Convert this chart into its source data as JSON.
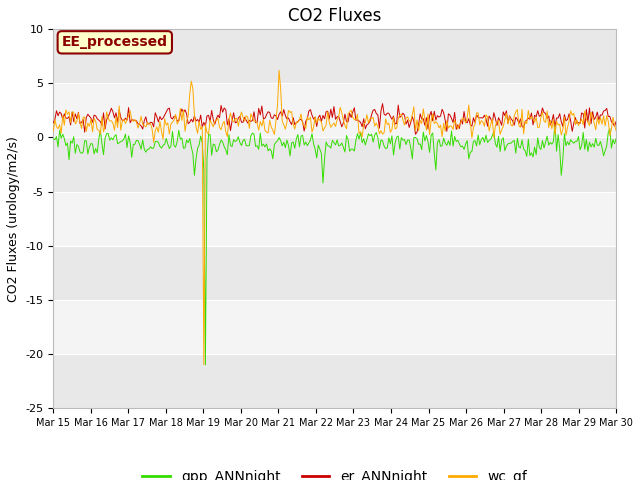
{
  "title": "CO2 Fluxes",
  "ylabel": "CO2 Fluxes (urology/m2/s)",
  "x_tick_labels": [
    "Mar 15",
    "Mar 16",
    "Mar 17",
    "Mar 18",
    "Mar 19",
    "Mar 20",
    "Mar 21",
    "Mar 22",
    "Mar 23",
    "Mar 24",
    "Mar 25",
    "Mar 26",
    "Mar 27",
    "Mar 28",
    "Mar 29",
    "Mar 30"
  ],
  "annotation_text": "EE_processed",
  "line_colors": {
    "gpp": "#33dd00",
    "er": "#cc0000",
    "wc": "#ffaa00"
  },
  "line_labels": [
    "gpp_ANNnight",
    "er_ANNnight",
    "wc_gf"
  ],
  "legend_colors": [
    "#33dd00",
    "#cc0000",
    "#ffaa00"
  ],
  "fig_bg": "#ffffff",
  "plot_bg_light": "#f0f0f0",
  "plot_bg_dark": "#e0e0e0",
  "grid_color": "#ffffff",
  "title_fontsize": 12,
  "axis_fontsize": 9,
  "tick_fontsize": 8,
  "legend_fontsize": 10,
  "n_days": 15,
  "n_per_day": 24
}
